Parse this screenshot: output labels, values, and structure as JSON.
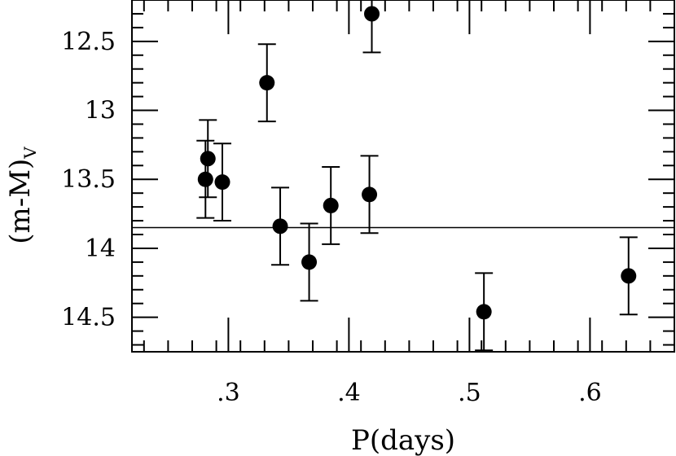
{
  "chart_data": {
    "type": "scatter",
    "title": "",
    "xlabel": "P(days)",
    "ylabel_main": "(m-M)",
    "ylabel_sub": "V",
    "xlim": [
      0.22,
      0.67
    ],
    "ylim": [
      14.75,
      12.2
    ],
    "y_inverted": true,
    "xticks": [
      0.3,
      0.4,
      0.5,
      0.6
    ],
    "xtick_labels": [
      ".3",
      ".4",
      ".5",
      ".6"
    ],
    "yticks": [
      12.5,
      13,
      13.5,
      14,
      14.5
    ],
    "ytick_labels": [
      "12.5",
      "13",
      "13.5",
      "14",
      "14.5"
    ],
    "reference_line_y": 13.85,
    "grid": false,
    "legend": "none",
    "points": [
      {
        "x": 0.281,
        "y": 13.5,
        "err": 0.28
      },
      {
        "x": 0.283,
        "y": 13.35,
        "err": 0.28
      },
      {
        "x": 0.295,
        "y": 13.52,
        "err": 0.28
      },
      {
        "x": 0.332,
        "y": 12.8,
        "err": 0.28
      },
      {
        "x": 0.343,
        "y": 13.84,
        "err": 0.28
      },
      {
        "x": 0.367,
        "y": 14.1,
        "err": 0.28
      },
      {
        "x": 0.385,
        "y": 13.69,
        "err": 0.28
      },
      {
        "x": 0.417,
        "y": 13.61,
        "err": 0.28
      },
      {
        "x": 0.419,
        "y": 12.3,
        "err": 0.28
      },
      {
        "x": 0.512,
        "y": 14.46,
        "err": 0.28
      },
      {
        "x": 0.632,
        "y": 14.2,
        "err": 0.28
      }
    ]
  }
}
